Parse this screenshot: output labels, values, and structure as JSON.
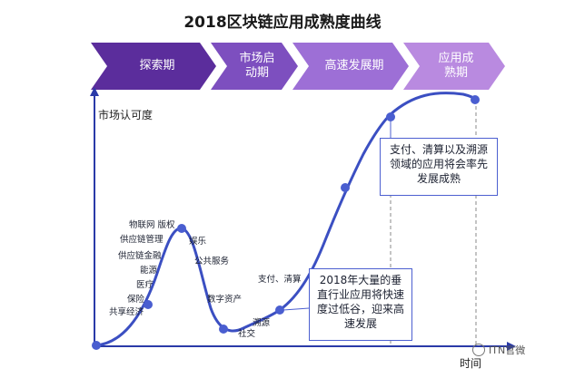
{
  "title": "2018区块链应用成熟度曲线",
  "phases": [
    {
      "label": "探索期",
      "color": "#5b2d9c"
    },
    {
      "label": "市场启动期",
      "color": "#7d4fbf"
    },
    {
      "label": "高速发展期",
      "color": "#9d6fd6"
    },
    {
      "label": "应用成熟期",
      "color": "#b98ae0"
    }
  ],
  "yaxis_label": "市场认可度",
  "xaxis_label": "时间",
  "curve_labels": {
    "left": [
      "物联网 版权",
      "供应链管理",
      "供应链金融",
      "能源",
      "医疗",
      "保险",
      "共享经济"
    ],
    "right": [
      "娱乐",
      "公共服务",
      "数字资产"
    ],
    "trough": [
      "溯源",
      "社交"
    ],
    "rising": "支付、清算"
  },
  "callout_low": "2018年大量的垂直行业应用将快速度过低谷，迎来高速发展",
  "callout_high": "支付、清算以及溯源领域的应用将会率先发展成熟",
  "watermark": "ITN官微",
  "colors": {
    "curve": "#3b4fc2",
    "dot": "#4a5ed0",
    "axis": "#2a3aa8"
  }
}
